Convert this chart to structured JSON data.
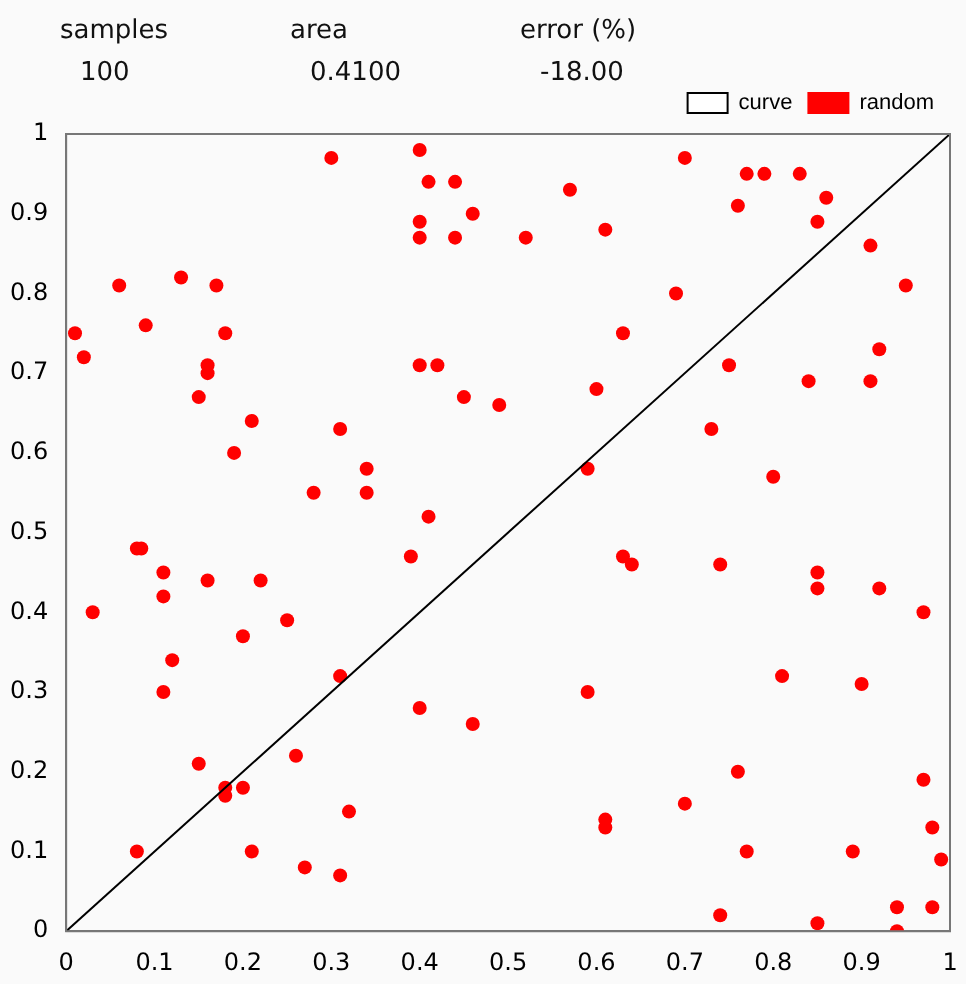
{
  "chart_data": {
    "type": "scatter",
    "annotations": [
      "samples",
      "100",
      "area",
      "0.4100",
      "error (%)",
      "-18.00"
    ],
    "xlim": [
      0,
      1
    ],
    "ylim": [
      0,
      1
    ],
    "xticks": [
      0,
      0.1,
      0.2,
      0.3,
      0.4,
      0.5,
      0.6,
      0.7,
      0.8,
      0.9,
      1
    ],
    "yticks": [
      0,
      0.1,
      0.2,
      0.3,
      0.4,
      0.5,
      0.6,
      0.7,
      0.8,
      0.9,
      1
    ],
    "grid": false,
    "legend": "top right",
    "marker": "circle",
    "series": [
      {
        "name": "curve",
        "type": "line",
        "color": "#000000",
        "marker": "none",
        "line_style": "solid",
        "x": [
          0,
          1
        ],
        "values": [
          0,
          1
        ]
      },
      {
        "name": "random",
        "type": "scatter",
        "color": "#ff0000",
        "x": [
          0.01,
          0.02,
          0.03,
          0.06,
          0.08,
          0.08,
          0.085,
          0.09,
          0.11,
          0.11,
          0.11,
          0.12,
          0.13,
          0.15,
          0.15,
          0.16,
          0.16,
          0.16,
          0.17,
          0.18,
          0.18,
          0.18,
          0.19,
          0.2,
          0.2,
          0.21,
          0.21,
          0.22,
          0.25,
          0.26,
          0.27,
          0.28,
          0.3,
          0.31,
          0.31,
          0.31,
          0.32,
          0.34,
          0.34,
          0.39,
          0.4,
          0.4,
          0.4,
          0.4,
          0.4,
          0.41,
          0.41,
          0.42,
          0.44,
          0.44,
          0.45,
          0.46,
          0.46,
          0.49,
          0.52,
          0.57,
          0.59,
          0.59,
          0.6,
          0.61,
          0.61,
          0.61,
          0.63,
          0.63,
          0.64,
          0.69,
          0.7,
          0.7,
          0.73,
          0.74,
          0.74,
          0.75,
          0.76,
          0.76,
          0.77,
          0.77,
          0.79,
          0.8,
          0.81,
          0.83,
          0.85,
          0.85,
          0.85,
          0.85,
          0.86,
          0.84,
          0.89,
          0.9,
          0.91,
          0.91,
          0.92,
          0.92,
          0.94,
          0.94,
          0.95,
          0.97,
          0.97,
          0.98,
          0.98,
          0.99
        ],
        "values": [
          0.75,
          0.72,
          0.4,
          0.81,
          0.1,
          0.48,
          0.48,
          0.76,
          0.45,
          0.42,
          0.3,
          0.34,
          0.82,
          0.21,
          0.67,
          0.71,
          0.7,
          0.44,
          0.81,
          0.75,
          0.18,
          0.17,
          0.6,
          0.37,
          0.18,
          0.64,
          0.1,
          0.44,
          0.39,
          0.22,
          0.08,
          0.55,
          0.97,
          0.63,
          0.07,
          0.32,
          0.15,
          0.58,
          0.55,
          0.47,
          0.89,
          0.87,
          0.98,
          0.71,
          0.28,
          0.52,
          0.94,
          0.71,
          0.87,
          0.94,
          0.67,
          0.9,
          0.26,
          0.66,
          0.87,
          0.93,
          0.58,
          0.3,
          0.68,
          0.13,
          0.14,
          0.88,
          0.75,
          0.47,
          0.46,
          0.8,
          0.16,
          0.97,
          0.63,
          0.46,
          0.02,
          0.71,
          0.91,
          0.2,
          0.95,
          0.1,
          0.95,
          0.57,
          0.32,
          0.95,
          0.01,
          0.45,
          0.43,
          0.89,
          0.92,
          0.69,
          0.1,
          0.31,
          0.69,
          0.86,
          0.43,
          0.73,
          0.03,
          0,
          0.81,
          0.4,
          0.19,
          0.13,
          0.03,
          0.09
        ]
      }
    ]
  }
}
